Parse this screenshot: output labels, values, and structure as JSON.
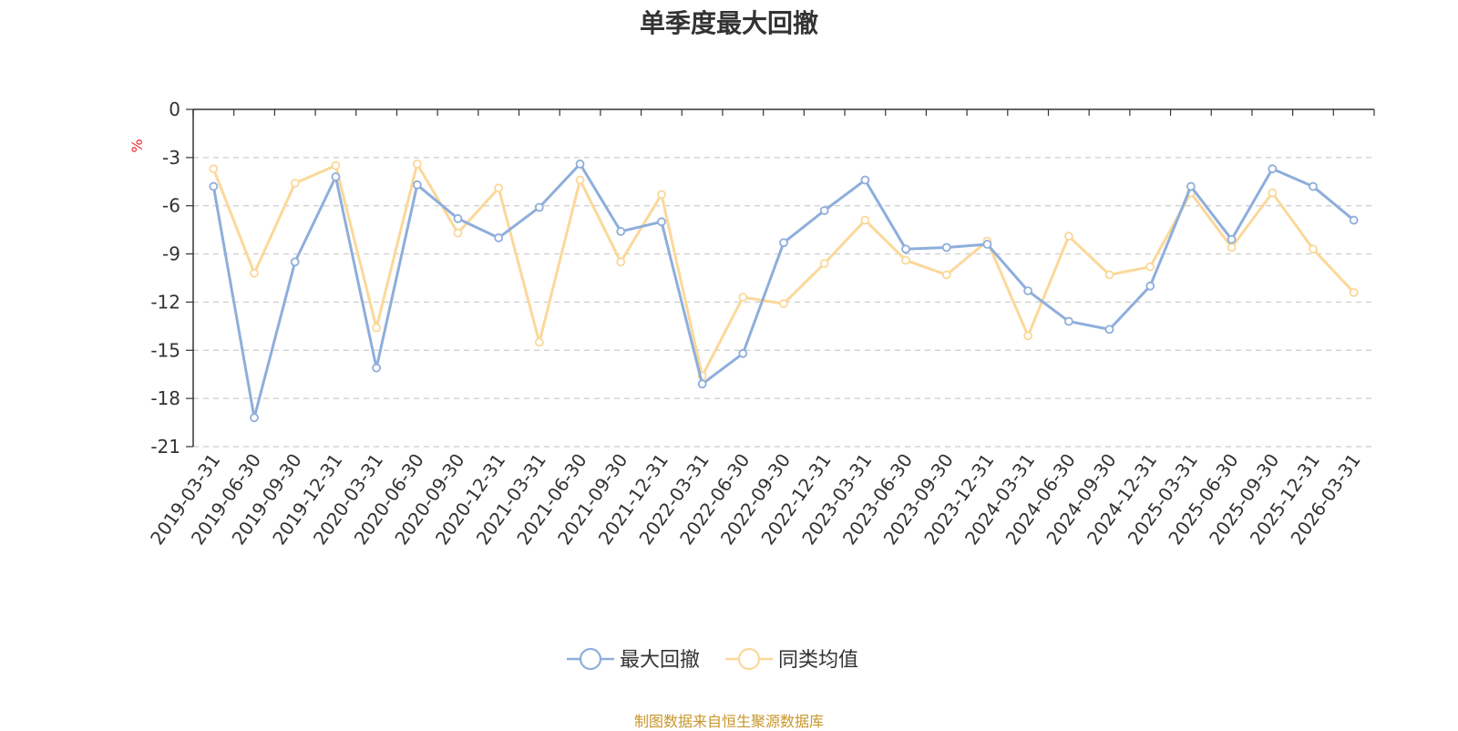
{
  "title": "单季度最大回撤",
  "source": "制图数据来自恒生聚源数据库",
  "colors": {
    "series1": "#8eaedb",
    "series2": "#fbd89a",
    "source": "#c8962a",
    "ylabel": "#e8262b",
    "grid": "#cccccc",
    "axis": "#333333"
  },
  "chart_data": {
    "type": "line",
    "ylabel": "%",
    "ylim": [
      -21,
      0
    ],
    "yticks": [
      0,
      -3,
      -6,
      -9,
      -12,
      -15,
      -18,
      -21
    ],
    "grid": "horizontal-dashed",
    "legend_position": "bottom-center",
    "categories": [
      "2019-03-31",
      "2019-06-30",
      "2019-09-30",
      "2019-12-31",
      "2020-03-31",
      "2020-06-30",
      "2020-09-30",
      "2020-12-31",
      "2021-03-31",
      "2021-06-30",
      "2021-09-30",
      "2021-12-31",
      "2022-03-31",
      "2022-06-30",
      "2022-09-30",
      "2022-12-31",
      "2023-03-31",
      "2023-06-30",
      "2023-09-30",
      "2023-12-31",
      "2024-03-31",
      "2024-06-30",
      "2024-09-30",
      "2024-12-31",
      "2025-03-31",
      "2025-06-30",
      "2025-09-30",
      "2025-12-31",
      "2026-03-31"
    ],
    "series": [
      {
        "name": "最大回撤",
        "values": [
          -4.8,
          -19.2,
          -9.5,
          -4.2,
          -16.1,
          -4.7,
          -6.8,
          -8.0,
          -6.1,
          -3.4,
          -7.6,
          -7.0,
          -17.1,
          -15.2,
          -8.3,
          -6.3,
          -4.4,
          -8.7,
          -8.6,
          -8.4,
          -11.3,
          -13.2,
          -13.7,
          -11.0,
          -4.8,
          -8.1,
          -3.7,
          -4.8,
          -6.9
        ]
      },
      {
        "name": "同类均值",
        "values": [
          -3.7,
          -10.2,
          -4.6,
          -3.5,
          -13.6,
          -3.4,
          -7.7,
          -4.9,
          -14.5,
          -4.4,
          -9.5,
          -5.3,
          -16.6,
          -11.7,
          -12.1,
          -9.6,
          -6.9,
          -9.4,
          -10.3,
          -8.2,
          -14.1,
          -7.9,
          -10.3,
          -9.8,
          -5.2,
          -8.6,
          -5.2,
          -8.7,
          -11.4
        ]
      }
    ]
  }
}
